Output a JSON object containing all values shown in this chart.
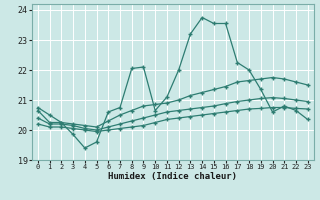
{
  "xlabel": "Humidex (Indice chaleur)",
  "xlim": [
    -0.5,
    23.5
  ],
  "ylim": [
    19.0,
    24.2
  ],
  "yticks": [
    19,
    20,
    21,
    22,
    23,
    24
  ],
  "xticks": [
    0,
    1,
    2,
    3,
    4,
    5,
    6,
    7,
    8,
    9,
    10,
    11,
    12,
    13,
    14,
    15,
    16,
    17,
    18,
    19,
    20,
    21,
    22,
    23
  ],
  "bg_color": "#cce8e6",
  "grid_color": "#ffffff",
  "line_color": "#2e7d72",
  "lines": [
    {
      "x": [
        0,
        1,
        2,
        3,
        4,
        5,
        6,
        7,
        8,
        9,
        10,
        11,
        12,
        13,
        14,
        15,
        16,
        17,
        18,
        19,
        20,
        21,
        22,
        23
      ],
      "y": [
        20.75,
        20.5,
        20.25,
        19.85,
        19.4,
        19.6,
        20.6,
        20.75,
        22.05,
        22.1,
        20.65,
        21.1,
        22.0,
        23.2,
        23.75,
        23.55,
        23.55,
        22.25,
        22.0,
        21.35,
        20.6,
        20.8,
        20.65,
        20.35
      ]
    },
    {
      "x": [
        0,
        1,
        2,
        3,
        4,
        5,
        6,
        7,
        8,
        9,
        10,
        11,
        12,
        13,
        14,
        15,
        16,
        17,
        18,
        19,
        20,
        21,
        22,
        23
      ],
      "y": [
        20.65,
        20.25,
        20.25,
        20.2,
        20.15,
        20.1,
        20.3,
        20.5,
        20.65,
        20.8,
        20.85,
        20.9,
        21.0,
        21.15,
        21.25,
        21.35,
        21.45,
        21.6,
        21.65,
        21.7,
        21.75,
        21.7,
        21.6,
        21.5
      ]
    },
    {
      "x": [
        0,
        1,
        2,
        3,
        4,
        5,
        6,
        7,
        8,
        9,
        10,
        11,
        12,
        13,
        14,
        15,
        16,
        17,
        18,
        19,
        20,
        21,
        22,
        23
      ],
      "y": [
        20.4,
        20.2,
        20.2,
        20.15,
        20.05,
        20.0,
        20.1,
        20.2,
        20.3,
        20.4,
        20.5,
        20.6,
        20.65,
        20.7,
        20.75,
        20.8,
        20.88,
        20.95,
        21.0,
        21.05,
        21.08,
        21.05,
        21.0,
        20.95
      ]
    },
    {
      "x": [
        0,
        1,
        2,
        3,
        4,
        5,
        6,
        7,
        8,
        9,
        10,
        11,
        12,
        13,
        14,
        15,
        16,
        17,
        18,
        19,
        20,
        21,
        22,
        23
      ],
      "y": [
        20.2,
        20.1,
        20.1,
        20.05,
        20.0,
        19.95,
        20.0,
        20.05,
        20.1,
        20.15,
        20.25,
        20.35,
        20.4,
        20.45,
        20.5,
        20.55,
        20.6,
        20.65,
        20.7,
        20.72,
        20.75,
        20.75,
        20.72,
        20.7
      ]
    }
  ]
}
